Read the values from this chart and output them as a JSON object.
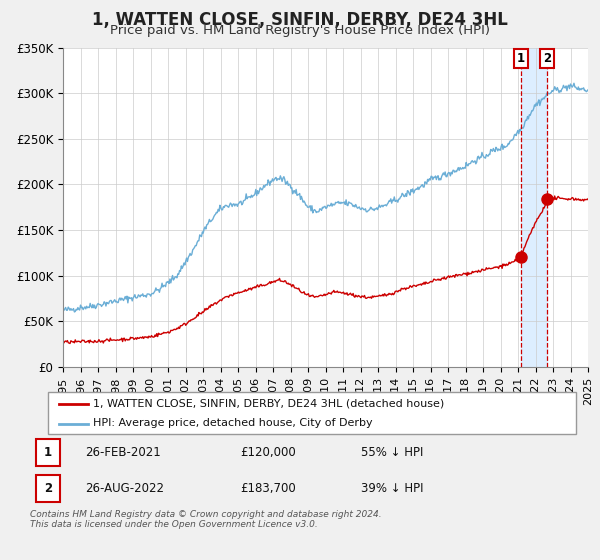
{
  "title": "1, WATTEN CLOSE, SINFIN, DERBY, DE24 3HL",
  "subtitle": "Price paid vs. HM Land Registry's House Price Index (HPI)",
  "title_fontsize": 12,
  "subtitle_fontsize": 9.5,
  "xlim": [
    1995,
    2025
  ],
  "ylim": [
    0,
    350000
  ],
  "yticks": [
    0,
    50000,
    100000,
    150000,
    200000,
    250000,
    300000,
    350000
  ],
  "ytick_labels": [
    "£0",
    "£50K",
    "£100K",
    "£150K",
    "£200K",
    "£250K",
    "£300K",
    "£350K"
  ],
  "xticks": [
    1995,
    1996,
    1997,
    1998,
    1999,
    2000,
    2001,
    2002,
    2003,
    2004,
    2005,
    2006,
    2007,
    2008,
    2009,
    2010,
    2011,
    2012,
    2013,
    2014,
    2015,
    2016,
    2017,
    2018,
    2019,
    2020,
    2021,
    2022,
    2023,
    2024,
    2025
  ],
  "hpi_color": "#6baed6",
  "price_color": "#cc0000",
  "marker_color": "#cc0000",
  "shade_color": "#ddeeff",
  "dashed_line_color": "#cc0000",
  "transaction1_date": 2021.15,
  "transaction2_date": 2022.65,
  "transaction1_price": 120000,
  "transaction2_price": 183700,
  "legend_label_price": "1, WATTEN CLOSE, SINFIN, DERBY, DE24 3HL (detached house)",
  "legend_label_hpi": "HPI: Average price, detached house, City of Derby",
  "info1": "26-FEB-2021",
  "info1_price": "£120,000",
  "info1_pct": "55% ↓ HPI",
  "info2": "26-AUG-2022",
  "info2_price": "£183,700",
  "info2_pct": "39% ↓ HPI",
  "footer": "Contains HM Land Registry data © Crown copyright and database right 2024.\nThis data is licensed under the Open Government Licence v3.0.",
  "bg_color": "#f0f0f0",
  "plot_bg_color": "#ffffff"
}
